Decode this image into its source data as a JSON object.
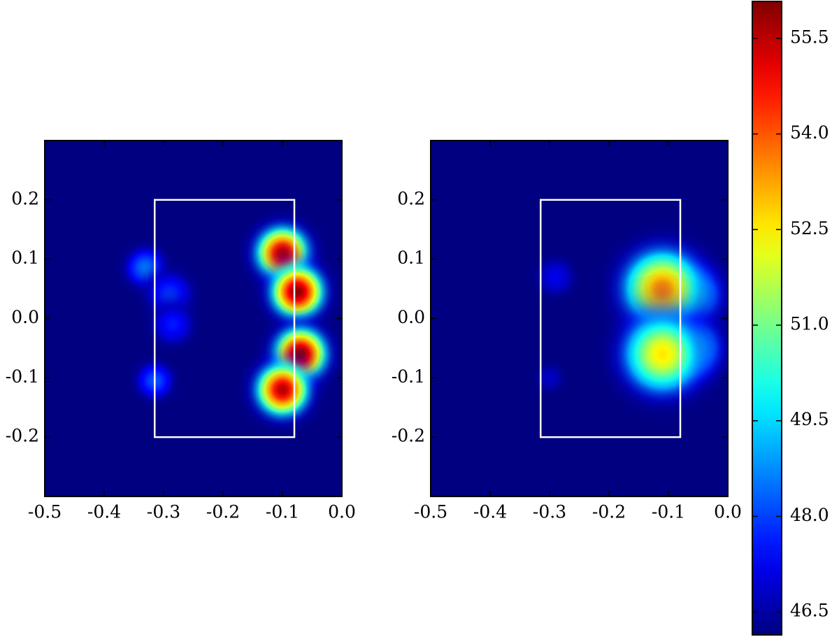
{
  "chart_data": [
    {
      "type": "heatmap",
      "colormap": "jet",
      "xlim": [
        -0.5,
        0.0
      ],
      "ylim": [
        -0.3,
        0.3
      ],
      "xticks": [
        -0.5,
        -0.4,
        -0.3,
        -0.2,
        -0.1,
        {
          "value": 0.0,
          "label": "0.0"
        }
      ],
      "yticks": [
        -0.2,
        -0.1,
        {
          "value": 0.0,
          "label": "0.0"
        },
        0.1,
        0.2
      ],
      "x": [
        -0.33,
        -0.29,
        -0.285,
        -0.315,
        -0.1,
        -0.075,
        -0.07,
        -0.1
      ],
      "y": [
        0.085,
        0.04,
        -0.01,
        -0.105,
        0.11,
        0.045,
        -0.06,
        -0.12
      ],
      "values": [
        48.6,
        47.9,
        47.6,
        48.2,
        55.6,
        56.0,
        56.0,
        55.6
      ],
      "sigma": [
        0.022,
        0.025,
        0.022,
        0.02,
        0.03,
        0.03,
        0.03,
        0.03
      ],
      "box": {
        "x": [
          -0.315,
          -0.08
        ],
        "y": [
          -0.2,
          0.2
        ],
        "color": "#ffffff"
      }
    },
    {
      "type": "heatmap",
      "colormap": "jet",
      "xlim": [
        -0.5,
        0.0
      ],
      "ylim": [
        -0.3,
        0.3
      ],
      "xticks": [
        -0.5,
        -0.4,
        -0.3,
        -0.2,
        -0.1,
        {
          "value": 0.0,
          "label": "0.0"
        }
      ],
      "yticks": [
        -0.2,
        -0.1,
        {
          "value": 0.0,
          "label": "0.0"
        },
        0.1,
        0.2
      ],
      "x": [
        -0.29,
        -0.3,
        -0.065,
        -0.065,
        -0.11,
        -0.11
      ],
      "y": [
        0.07,
        -0.1,
        0.04,
        -0.05,
        0.05,
        -0.06
      ],
      "values": [
        47.2,
        46.8,
        51.0,
        51.0,
        53.6,
        52.6
      ],
      "sigma": [
        0.02,
        0.015,
        0.035,
        0.035,
        0.045,
        0.045
      ],
      "box": {
        "x": [
          -0.315,
          -0.08
        ],
        "y": [
          -0.2,
          0.2
        ],
        "color": "#ffffff"
      }
    },
    {
      "type": "colorbar",
      "colormap": "jet",
      "ylim": [
        46.14,
        56.08
      ],
      "yticks": [
        46.5,
        {
          "value": 48.0,
          "label": "48.0"
        },
        49.5,
        {
          "value": 51.0,
          "label": "51.0"
        },
        52.5,
        {
          "value": 54.0,
          "label": "54.0"
        },
        55.5
      ]
    }
  ]
}
